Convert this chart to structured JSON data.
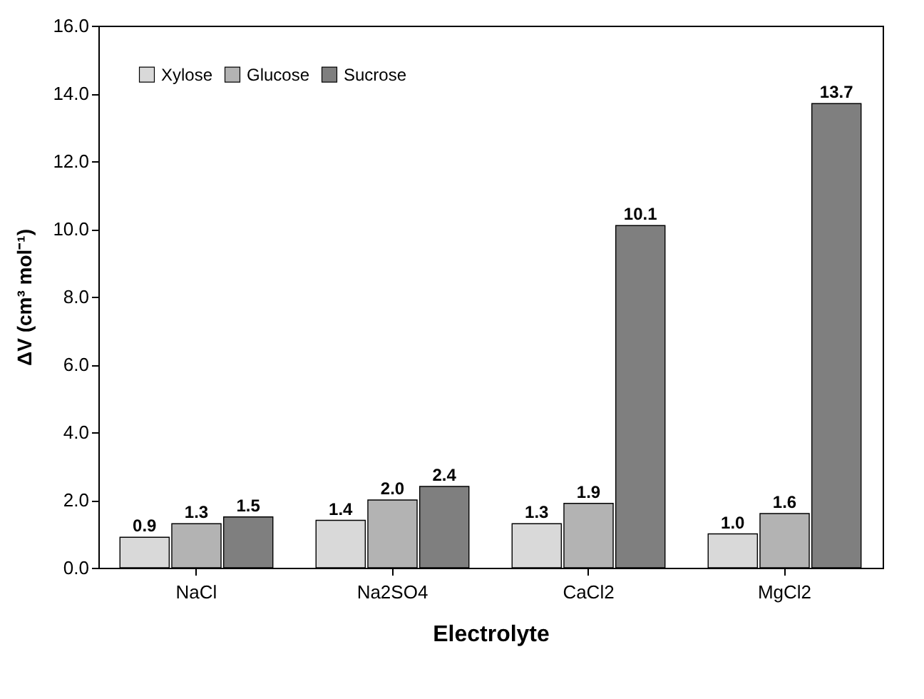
{
  "chart_data": {
    "type": "bar",
    "xlabel": "Electrolyte",
    "ylabel": "ΔV (cm³ mol⁻¹)",
    "categories": [
      "NaCl",
      "Na2SO4",
      "CaCl2",
      "MgCl2"
    ],
    "series": [
      {
        "name": "Xylose",
        "color": "#d9d9d9",
        "values": [
          0.9,
          1.4,
          1.3,
          1.0
        ],
        "value_labels": [
          "0.9",
          "1.4",
          "1.3",
          "1.0"
        ]
      },
      {
        "name": "Glucose",
        "color": "#b3b3b3",
        "values": [
          1.3,
          2.0,
          1.9,
          1.6
        ],
        "value_labels": [
          "1.3",
          "2.0",
          "1.9",
          "1.6"
        ]
      },
      {
        "name": "Sucrose",
        "color": "#7f7f7f",
        "values": [
          1.5,
          2.4,
          10.1,
          13.7
        ],
        "value_labels": [
          "1.5",
          "2.4",
          "10.1",
          "13.7"
        ]
      }
    ],
    "ylim": [
      0,
      16
    ],
    "yticks": [
      {
        "value": 0,
        "label": "0.0"
      },
      {
        "value": 2,
        "label": "2.0"
      },
      {
        "value": 4,
        "label": "4.0"
      },
      {
        "value": 6,
        "label": "6.0"
      },
      {
        "value": 8,
        "label": "8.0"
      },
      {
        "value": 10,
        "label": "10.0"
      },
      {
        "value": 12,
        "label": "12.0"
      },
      {
        "value": 14,
        "label": "14.0"
      },
      {
        "value": 16,
        "label": "16.0"
      }
    ],
    "grid": false,
    "legend": "top left"
  }
}
